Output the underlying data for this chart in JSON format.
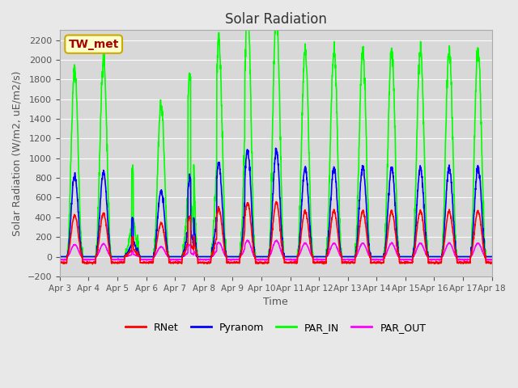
{
  "title": "Solar Radiation",
  "ylabel": "Solar Radiation (W/m2, uE/m2/s)",
  "xlabel": "Time",
  "ylim": [
    -200,
    2300
  ],
  "xlim": [
    0,
    15
  ],
  "background_color": "#e8e8e8",
  "plot_bg_color": "#d8d8d8",
  "annotation_text": "TW_met",
  "annotation_bg": "#ffffcc",
  "annotation_border": "#ccaa00",
  "annotation_text_color": "#aa0000",
  "tick_labels": [
    "Apr 3",
    "Apr 4",
    "Apr 5",
    "Apr 6",
    "Apr 7",
    "Apr 8",
    "Apr 9",
    "Apr 10",
    "Apr 11",
    "Apr 12",
    "Apr 13",
    "Apr 14",
    "Apr 15",
    "Apr 16",
    "Apr 17",
    "Apr 18"
  ],
  "series": {
    "RNet": {
      "color": "#ff0000",
      "lw": 1.2
    },
    "Pyranom": {
      "color": "#0000ff",
      "lw": 1.2
    },
    "PAR_IN": {
      "color": "#00ff00",
      "lw": 1.2
    },
    "PAR_OUT": {
      "color": "#ff00ff",
      "lw": 1.2
    }
  }
}
